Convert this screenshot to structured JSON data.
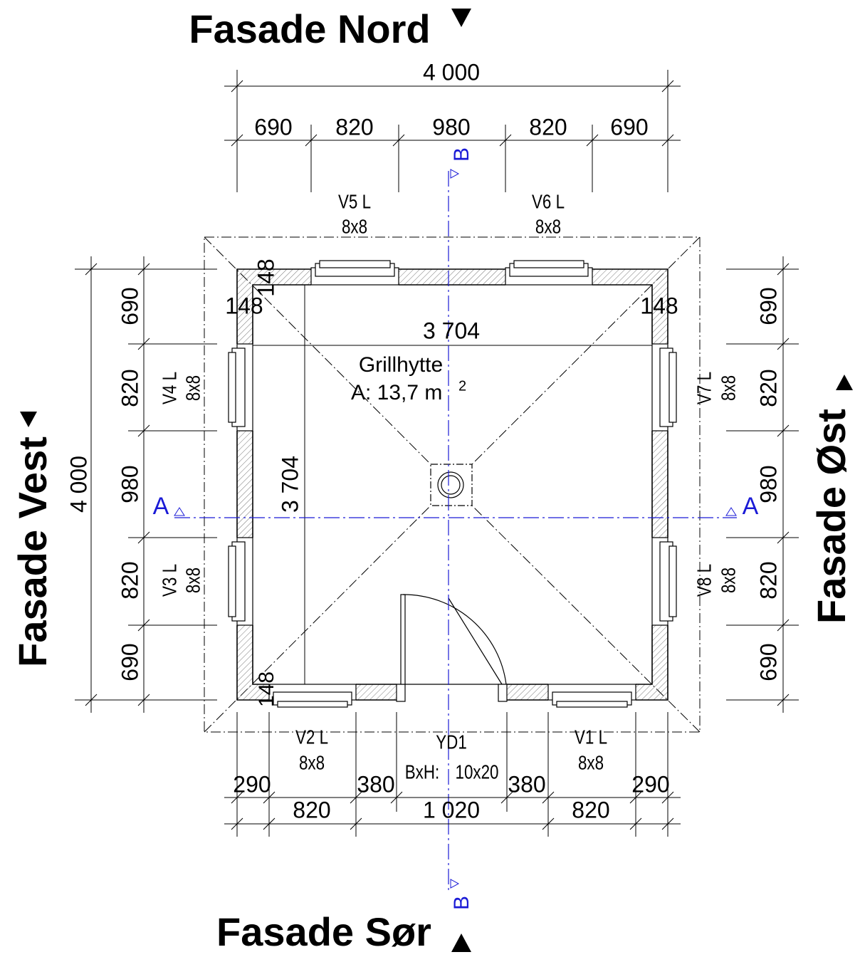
{
  "facades": {
    "north": "Fasade Nord",
    "south": "Fasade Sør",
    "west": "Fasade Vest",
    "east": "Fasade Øst"
  },
  "dimensions": {
    "top_total": "4 000",
    "top": [
      "690",
      "820",
      "980",
      "820",
      "690"
    ],
    "left_total": "4 000",
    "left": [
      "690",
      "820",
      "980",
      "820",
      "690"
    ],
    "right": [
      "690",
      "820",
      "980",
      "820",
      "690"
    ],
    "bottom_upper": [
      "290",
      "380",
      "380",
      "290"
    ],
    "bottom_lower": [
      "820",
      "1 020",
      "820"
    ],
    "wall": [
      "148",
      "148",
      "148",
      "148"
    ],
    "inner_width": "3 704",
    "inner_depth": "3 704"
  },
  "windows": [
    {
      "name": "V5 L",
      "size": "8x8"
    },
    {
      "name": "V6 L",
      "size": "8x8"
    },
    {
      "name": "V4 L",
      "size": "8x8"
    },
    {
      "name": "V3 L",
      "size": "8x8"
    },
    {
      "name": "V7 L",
      "size": "8x8"
    },
    {
      "name": "V8 L",
      "size": "8x8"
    },
    {
      "name": "V2 L",
      "size": "8x8"
    },
    {
      "name": "V1 L",
      "size": "8x8"
    }
  ],
  "door": {
    "name": "YD1",
    "size_label": "BxH:",
    "size": "10x20"
  },
  "room": {
    "name": "Grillhytte",
    "area": "A: 13,7 m",
    "area_sup": "2"
  },
  "sections": [
    "A",
    "A",
    "B",
    "B"
  ]
}
